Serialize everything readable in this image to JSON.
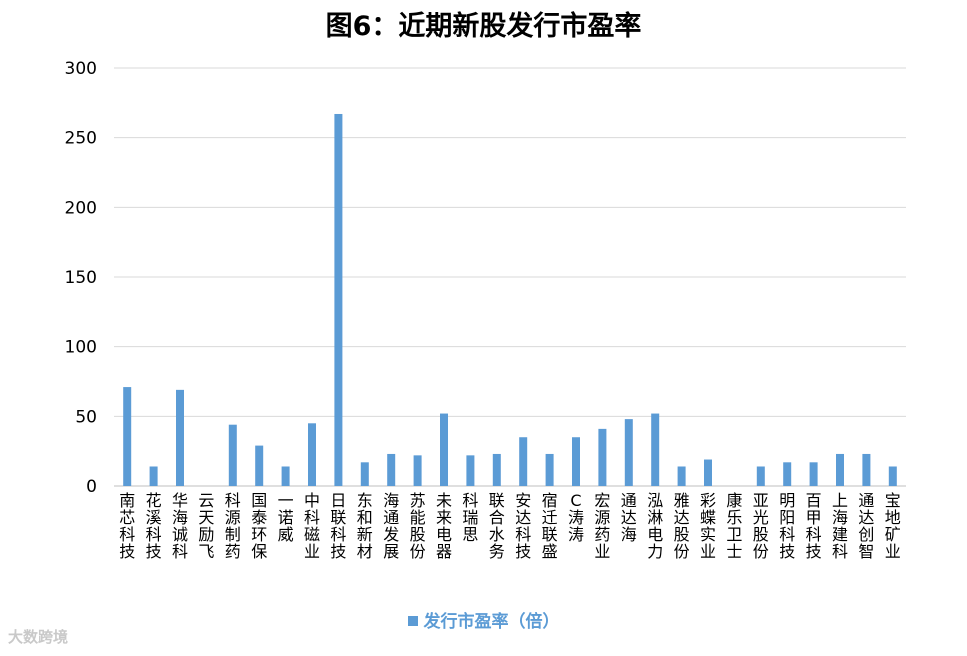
{
  "chart_data": {
    "type": "bar",
    "title": "图6：近期新股发行市盈率",
    "categories": [
      "南芯科技",
      "花溪科技",
      "华海诚科",
      "云天励飞",
      "科源制药",
      "国泰环保",
      "一诺威",
      "中科磁业",
      "日联科技",
      "东和新材",
      "海通发展",
      "苏能股份",
      "未来电器",
      "科瑞思",
      "联合水务",
      "安达科技",
      "宿迁联盛",
      "C涛涛",
      "宏源药业",
      "通达海",
      "泓淋电力",
      "雅达股份",
      "彩蝶实业",
      "康乐卫士",
      "亚光股份",
      "明阳科技",
      "百甲科技",
      "上海建科",
      "通达创智",
      "宝地矿业"
    ],
    "series": [
      {
        "name": "发行市盈率（倍）",
        "values": [
          71,
          14,
          69,
          0,
          44,
          29,
          14,
          45,
          267,
          17,
          23,
          22,
          52,
          22,
          23,
          35,
          23,
          35,
          41,
          48,
          52,
          14,
          19,
          0,
          14,
          17,
          17,
          23,
          23,
          14
        ]
      }
    ],
    "yticks": [
      0,
      50,
      100,
      150,
      200,
      250,
      300
    ],
    "ylim": [
      0,
      300
    ],
    "grid": true,
    "legend_position": "bottom",
    "colors": {
      "bar": "#5b9bd5",
      "grid": "#d9d9d9",
      "axis": "#bfbfbf"
    }
  },
  "watermark": "大数跨境"
}
